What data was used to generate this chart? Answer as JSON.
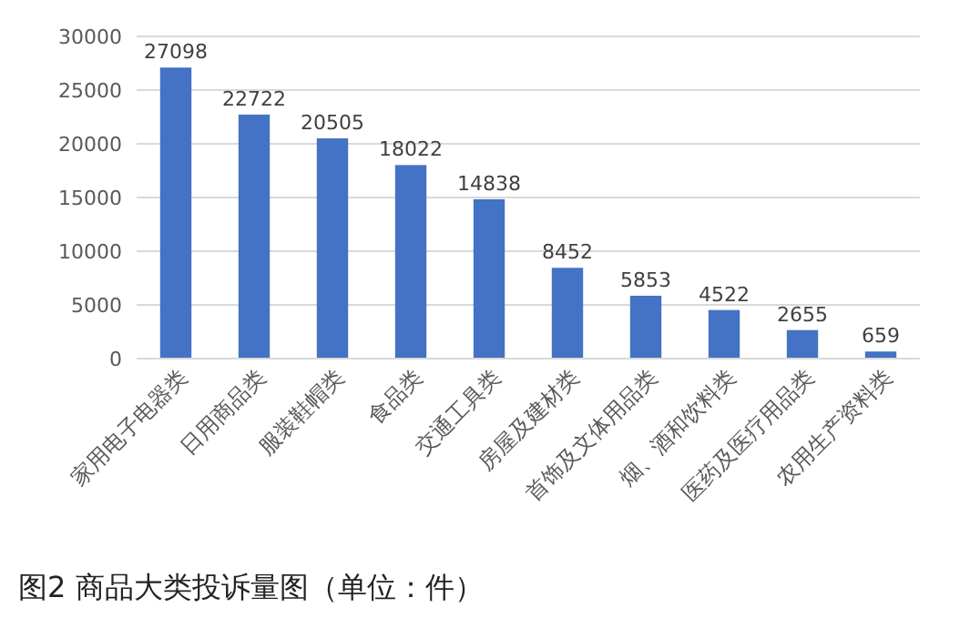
{
  "chart_data": {
    "type": "bar",
    "annotations": [
      "图2 商品大类投诉量图（单位：件）"
    ],
    "categories": [
      "家用电子电器类",
      "日用商品类",
      "服装鞋帽类",
      "食品类",
      "交通工具类",
      "房屋及建材类",
      "首饰及文体用品类",
      "烟、酒和饮料类",
      "医药及医疗用品类",
      "农用生产资料类"
    ],
    "values": [
      27098,
      22722,
      20505,
      18022,
      14838,
      8452,
      5853,
      4522,
      2655,
      659
    ],
    "color": "#4472c4",
    "ylim": [
      0,
      30000
    ],
    "yticks": [
      0,
      5000,
      10000,
      15000,
      20000,
      25000,
      30000
    ],
    "grid": "y",
    "data_labels": true
  }
}
